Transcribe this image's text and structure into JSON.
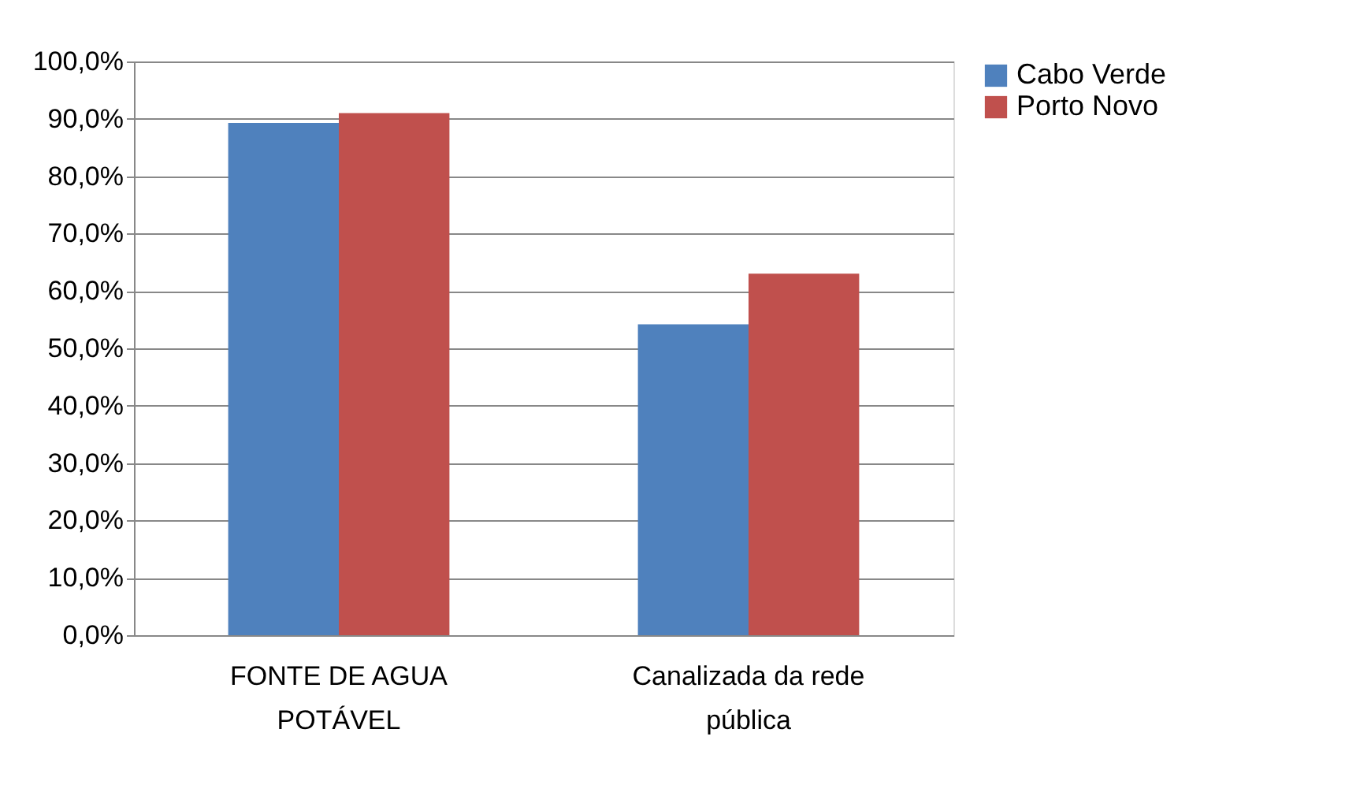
{
  "chart_data": {
    "type": "bar",
    "categories": [
      "FONTE DE AGUA POTÁVEL",
      "Canalizada da rede pública"
    ],
    "series": [
      {
        "name": "Cabo Verde",
        "color": "#4f81bd",
        "values": [
          89.3,
          54.2
        ]
      },
      {
        "name": "Porto Novo",
        "color": "#c0504d",
        "values": [
          91.0,
          63.0
        ]
      }
    ],
    "ylim": [
      0,
      100
    ],
    "yticks": [
      {
        "value": 0,
        "label": "0,0%"
      },
      {
        "value": 10,
        "label": "10,0%"
      },
      {
        "value": 20,
        "label": "20,0%"
      },
      {
        "value": 30,
        "label": "30,0%"
      },
      {
        "value": 40,
        "label": "40,0%"
      },
      {
        "value": 50,
        "label": "50,0%"
      },
      {
        "value": 60,
        "label": "60,0%"
      },
      {
        "value": 70,
        "label": "70,0%"
      },
      {
        "value": 80,
        "label": "80,0%"
      },
      {
        "value": 90,
        "label": "90,0%"
      },
      {
        "value": 100,
        "label": "100,0%"
      }
    ],
    "grid": "y",
    "legend": "right"
  }
}
